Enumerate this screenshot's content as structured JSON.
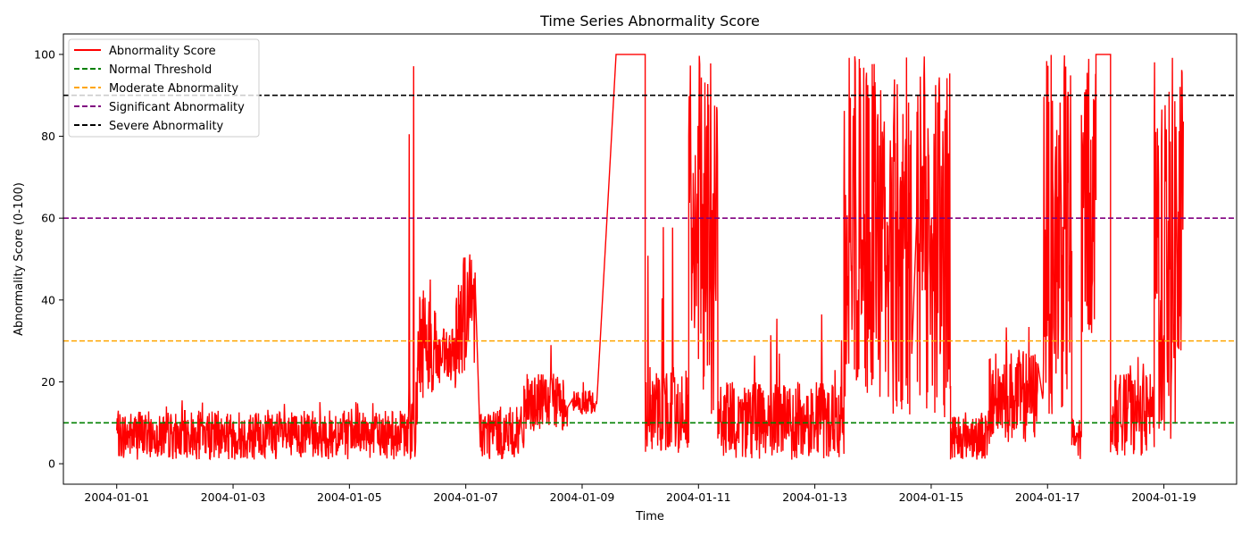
{
  "chart_data": {
    "type": "line",
    "title": "Time Series Abnormality Score",
    "xlabel": "Time",
    "ylabel": "Abnormality Score (0-100)",
    "xlim": [
      "2003-12-31T02:00",
      "2004-01-20T06:00"
    ],
    "ylim": [
      -5,
      105
    ],
    "x_ticks": [
      "2004-01-01",
      "2004-01-03",
      "2004-01-05",
      "2004-01-07",
      "2004-01-09",
      "2004-01-11",
      "2004-01-13",
      "2004-01-15",
      "2004-01-17",
      "2004-01-19"
    ],
    "y_ticks": [
      0,
      20,
      40,
      60,
      80,
      100
    ],
    "grid": false,
    "legend_position": "upper-left",
    "series": [
      {
        "name": "Abnormality Score",
        "color": "#ff0000",
        "style": "solid",
        "regimes": [
          {
            "start": "2004-01-01T00:00",
            "end": "2004-01-06T00:00",
            "low": 1,
            "high": 13,
            "peak": 16,
            "density": 1.0
          },
          {
            "start": "2004-01-06T00:00",
            "end": "2004-01-06T04:00",
            "low": 1,
            "high": 20,
            "peak": 100,
            "density": 0.9
          },
          {
            "start": "2004-01-06T04:00",
            "end": "2004-01-06T12:00",
            "low": 15,
            "high": 45,
            "peak": 60,
            "density": 0.9
          },
          {
            "start": "2004-01-06T12:00",
            "end": "2004-01-06T20:00",
            "low": 18,
            "high": 33,
            "peak": 38,
            "density": 0.9
          },
          {
            "start": "2004-01-06T20:00",
            "end": "2004-01-07T04:00",
            "low": 22,
            "high": 52,
            "peak": 58,
            "density": 0.9
          },
          {
            "start": "2004-01-07T06:00",
            "end": "2004-01-08T00:00",
            "low": 1,
            "high": 14,
            "peak": 18,
            "density": 0.9
          },
          {
            "start": "2004-01-08T00:00",
            "end": "2004-01-08T18:00",
            "low": 8,
            "high": 22,
            "peak": 30,
            "density": 0.9
          },
          {
            "start": "2004-01-08T20:00",
            "end": "2004-01-09T06:00",
            "low": 12,
            "high": 18,
            "peak": 20,
            "density": 0.9
          },
          {
            "start": "2004-01-09T14:00",
            "end": "2004-01-10T02:00",
            "low": 100,
            "high": 100,
            "peak": 100,
            "density": 0.1
          },
          {
            "start": "2004-01-10T02:00",
            "end": "2004-01-10T20:00",
            "low": 2,
            "high": 24,
            "peak": 84,
            "density": 0.9
          },
          {
            "start": "2004-01-10T20:00",
            "end": "2004-01-11T08:00",
            "low": 12,
            "high": 100,
            "peak": 100,
            "density": 0.9
          },
          {
            "start": "2004-01-11T08:00",
            "end": "2004-01-13T12:00",
            "low": 1,
            "high": 20,
            "peak": 40,
            "density": 0.9
          },
          {
            "start": "2004-01-13T12:00",
            "end": "2004-01-14T00:00",
            "low": 15,
            "high": 100,
            "peak": 100,
            "density": 0.9
          },
          {
            "start": "2004-01-14T00:00",
            "end": "2004-01-14T16:00",
            "low": 10,
            "high": 100,
            "peak": 100,
            "density": 0.8
          },
          {
            "start": "2004-01-14T18:00",
            "end": "2004-01-15T08:00",
            "low": 10,
            "high": 100,
            "peak": 100,
            "density": 1.0
          },
          {
            "start": "2004-01-15T08:00",
            "end": "2004-01-16T00:00",
            "low": 1,
            "high": 13,
            "peak": 18,
            "density": 0.9
          },
          {
            "start": "2004-01-16T00:00",
            "end": "2004-01-16T20:00",
            "low": 5,
            "high": 28,
            "peak": 36,
            "density": 0.9
          },
          {
            "start": "2004-01-16T22:00",
            "end": "2004-01-17T10:00",
            "low": 12,
            "high": 100,
            "peak": 100,
            "density": 1.0
          },
          {
            "start": "2004-01-17T10:00",
            "end": "2004-01-17T14:00",
            "low": 1,
            "high": 12,
            "peak": 14,
            "density": 0.9
          },
          {
            "start": "2004-01-17T14:00",
            "end": "2004-01-17T20:00",
            "low": 30,
            "high": 100,
            "peak": 100,
            "density": 0.9
          },
          {
            "start": "2004-01-17T20:00",
            "end": "2004-01-18T02:00",
            "low": 100,
            "high": 100,
            "peak": 100,
            "density": 0.1
          },
          {
            "start": "2004-01-18T02:00",
            "end": "2004-01-18T20:00",
            "low": 2,
            "high": 22,
            "peak": 27,
            "density": 0.9
          },
          {
            "start": "2004-01-18T20:00",
            "end": "2004-01-19T08:00",
            "low": 3,
            "high": 100,
            "peak": 100,
            "density": 1.0
          }
        ]
      },
      {
        "name": "Normal Threshold",
        "color": "#008000",
        "style": "dashed",
        "y": 10
      },
      {
        "name": "Moderate Abnormality",
        "color": "#ffa500",
        "style": "dashed",
        "y": 30
      },
      {
        "name": "Significant Abnormality",
        "color": "#800080",
        "style": "dashed",
        "y": 60
      },
      {
        "name": "Severe Abnormality",
        "color": "#000000",
        "style": "dashed",
        "y": 90
      }
    ]
  }
}
